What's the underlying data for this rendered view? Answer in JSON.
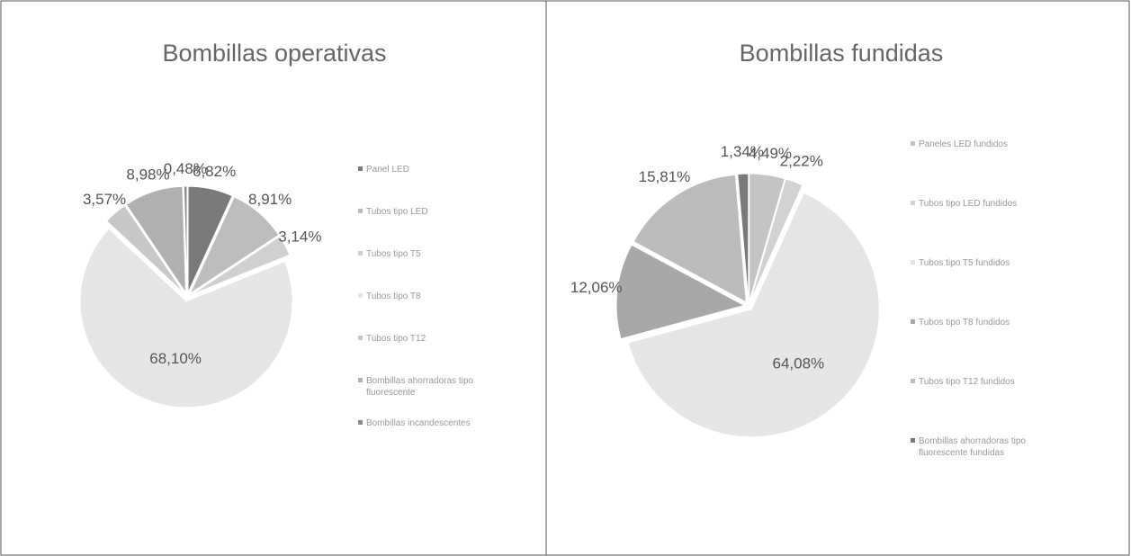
{
  "chart_data": [
    {
      "type": "pie",
      "title": "Bombillas operativas",
      "categories": [
        "Panel LED",
        "Tubos tipo LED",
        "Tubos tipo T5",
        "Tubos tipo T8",
        "Tubos tipo T12",
        "Bombillas ahorradoras tipo fluorescente",
        "Bombillas incandescentes"
      ],
      "values": [
        6.82,
        8.91,
        3.14,
        68.1,
        3.57,
        8.98,
        0.48
      ],
      "value_labels": [
        "6,82%",
        "8,91%",
        "3,14%",
        "68,10%",
        "3,57%",
        "8,98%",
        "0,48%"
      ],
      "colors": [
        "#7a7a7a",
        "#bdbdbd",
        "#d0d0d0",
        "#e6e6e6",
        "#c8c8c8",
        "#b0b0b0",
        "#8c8c8c"
      ]
    },
    {
      "type": "pie",
      "title": "Bombillas fundidas",
      "categories": [
        "Paneles LED fundidos",
        "Tubos tipo LED fundidos",
        "Tubos tipo T5 fundidos",
        "Tubos tipo T8 fundidos",
        "Tubos tipo T12 fundidos",
        "Bombillas ahorradoras tipo fluorescente fundidas"
      ],
      "values": [
        4.49,
        2.22,
        64.08,
        12.06,
        15.81,
        1.34
      ],
      "value_labels": [
        "4,49%",
        "2,22%",
        "64,08%",
        "12,06%",
        "15,81%",
        "1,34%"
      ],
      "colors": [
        "#c4c4c4",
        "#d2d2d2",
        "#e6e6e6",
        "#a8a8a8",
        "#bcbcbc",
        "#7a7a7a"
      ]
    }
  ]
}
